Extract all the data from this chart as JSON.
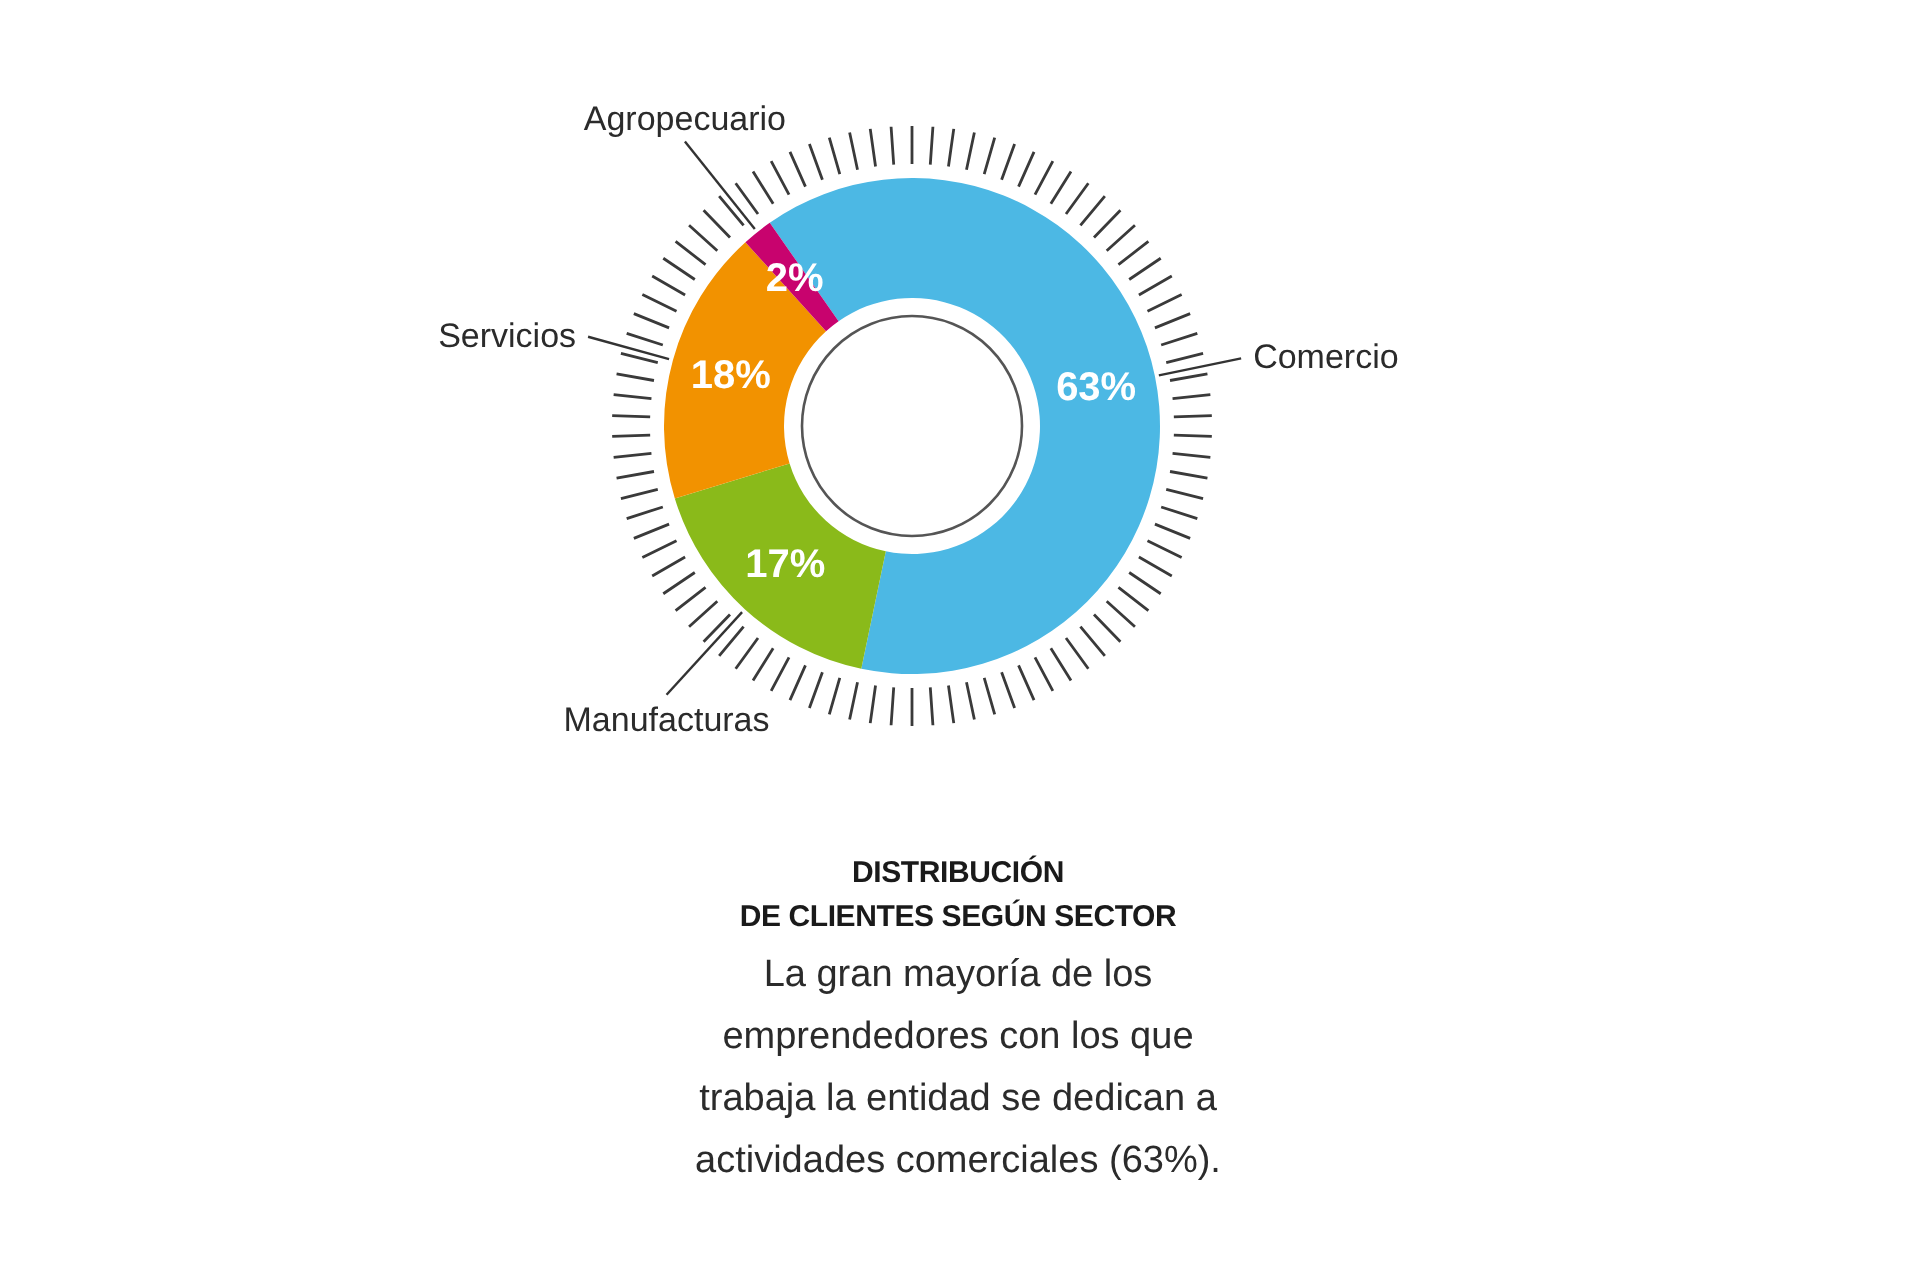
{
  "chart_data": {
    "type": "donut",
    "title": "DISTRIBUCIÓN DE CLIENTES SEGÚN SECTOR",
    "subtitle": "La gran mayoría de los emprendedores con los que trabaja la entidad se dedican a actividades comerciales (63%).",
    "categories": [
      "Comercio",
      "Manufacturas",
      "Servicios",
      "Agropecuario"
    ],
    "values": [
      63,
      17,
      18,
      2
    ],
    "colors": [
      "#4cb8e4",
      "#8aba1a",
      "#f29200",
      "#c8036e"
    ],
    "value_labels": [
      "63%",
      "17%",
      "18%",
      "2%"
    ]
  }
}
